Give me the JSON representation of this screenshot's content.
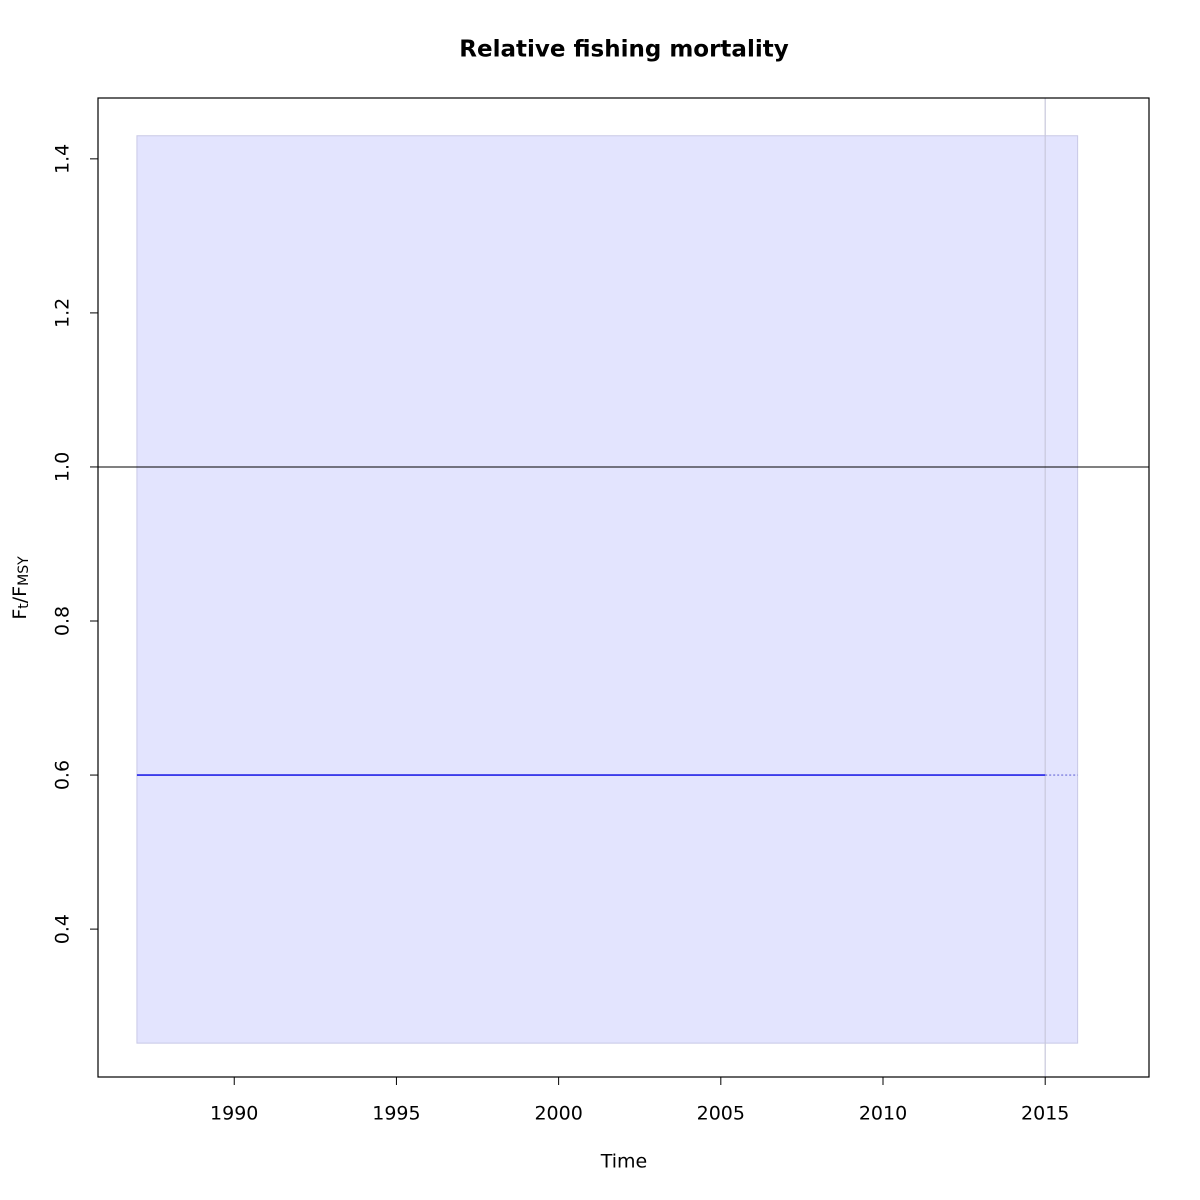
{
  "chart_data": {
    "type": "line",
    "title": "Relative fishing mortality",
    "xlabel": "Time",
    "ylabel": {
      "f1": "F",
      "sub1": "t",
      "f2": "/F",
      "sub2": "MSY"
    },
    "xlim": [
      1985.8,
      2018.2
    ],
    "ylim": [
      0.208,
      1.479
    ],
    "xticks": [
      1990,
      1995,
      2000,
      2005,
      2010,
      2015
    ],
    "yticks": [
      0.4,
      0.6,
      0.8,
      1.0,
      1.2,
      1.4
    ],
    "band": {
      "x": [
        1987,
        2016
      ],
      "lower": [
        0.252,
        0.252
      ],
      "upper": [
        1.43,
        1.43
      ],
      "color": "#e3e4fe",
      "edge": "#c8c8e6"
    },
    "line": {
      "x": [
        1987,
        2015
      ],
      "values": [
        0.6,
        0.6
      ],
      "color": "#3b3bea"
    },
    "forecast": {
      "x": [
        2015,
        2016
      ],
      "values": [
        0.6,
        0.6
      ],
      "color": "#6a6ad8"
    },
    "hline": 1.0,
    "vline": 2015
  }
}
